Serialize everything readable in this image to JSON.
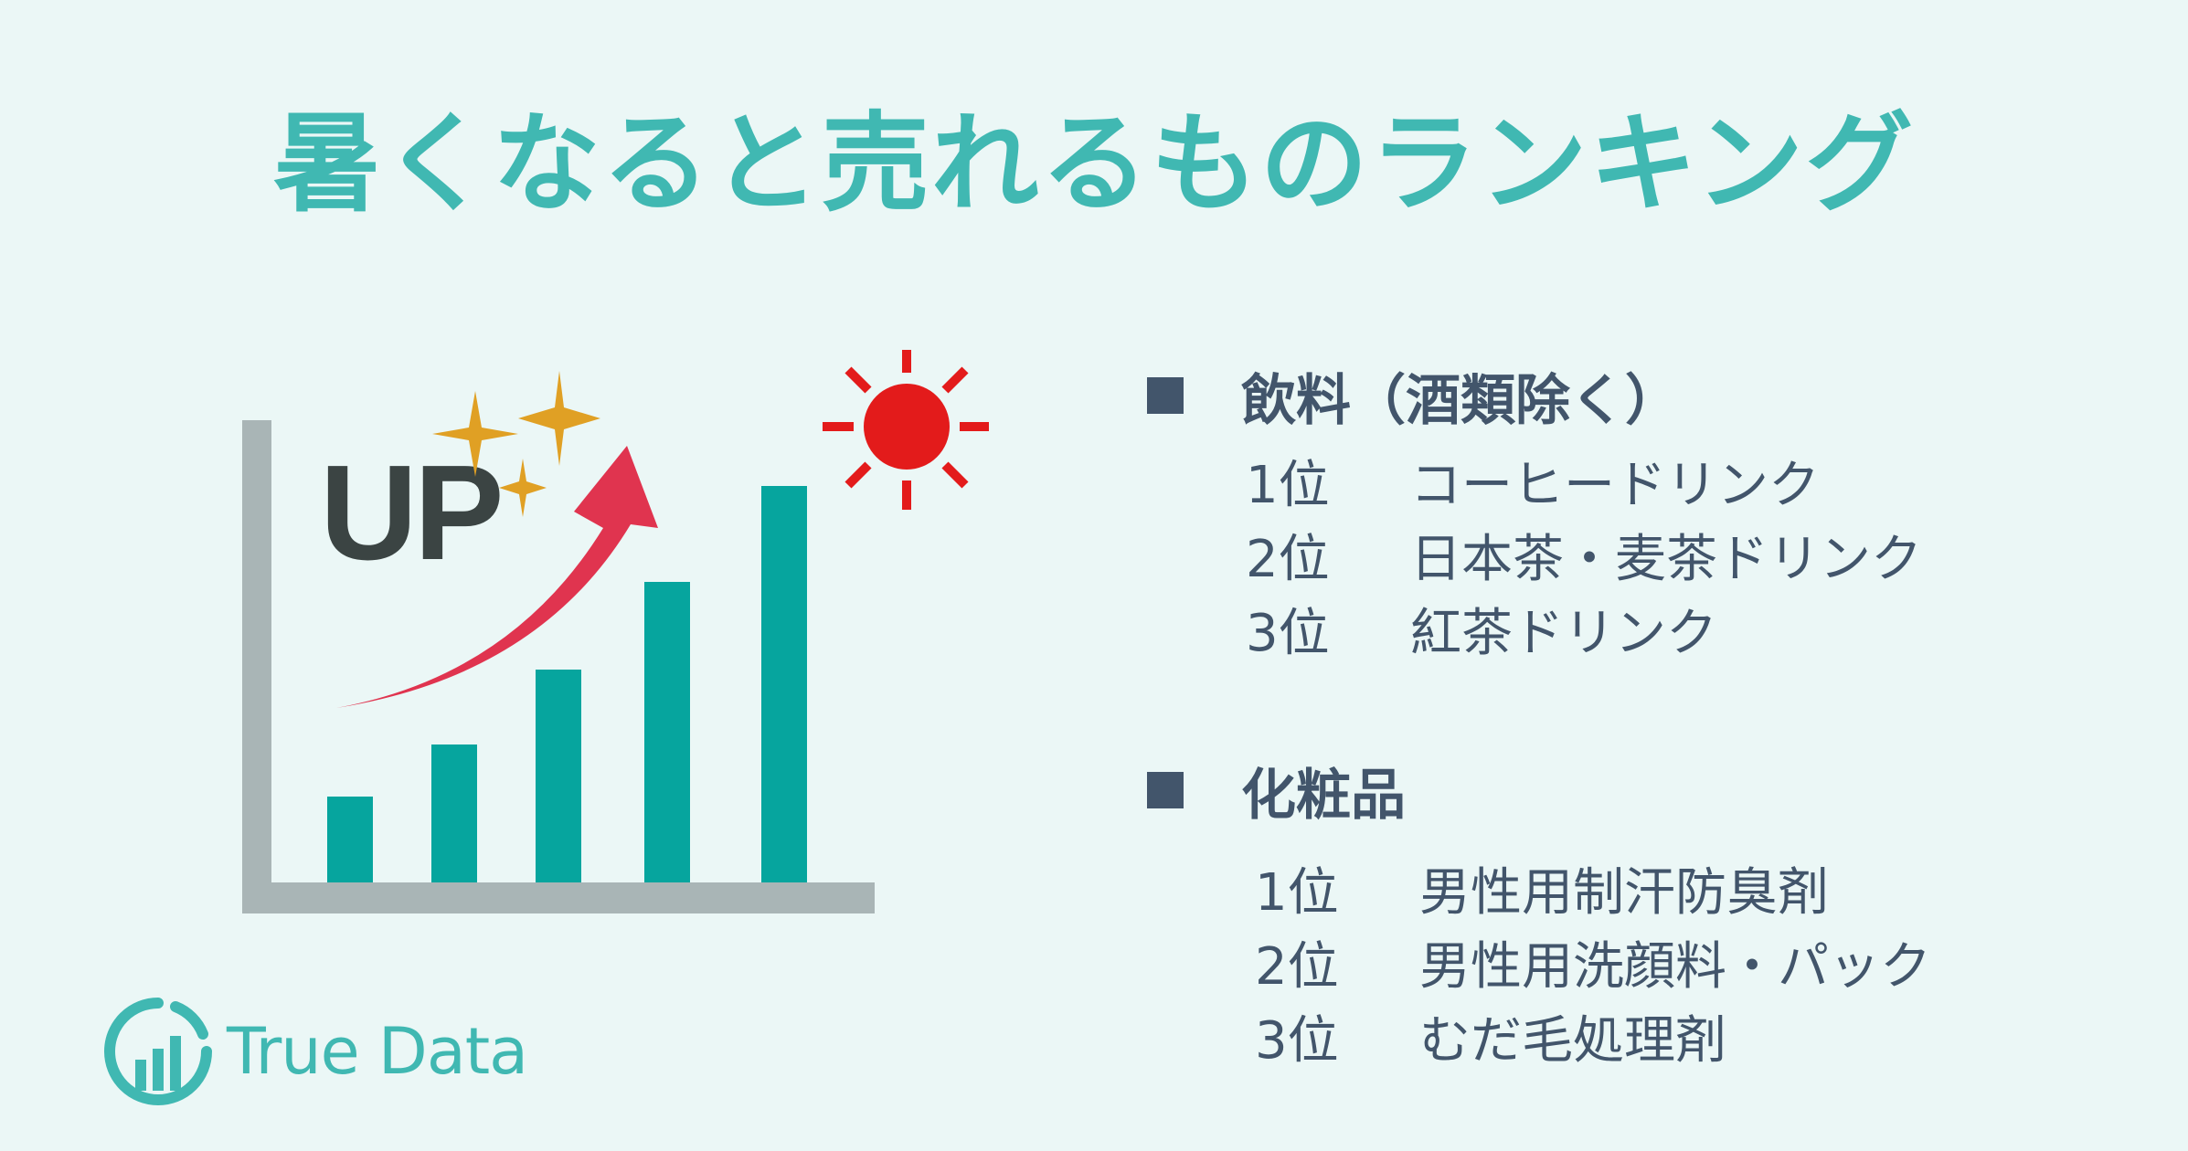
{
  "title": "暑くなると売れるものランキング",
  "illustration": {
    "up_label": "UP",
    "colors": {
      "bars": "#06a59e",
      "axis": "#a9b5b6",
      "arrow": "#e0344f",
      "sun": "#e31b1b",
      "sparkle": "#e0a024"
    }
  },
  "sections": [
    {
      "title": "飲料（酒類除く）",
      "items": [
        {
          "rank": "1位",
          "name": "コーヒードリンク"
        },
        {
          "rank": "2位",
          "name": "日本茶・麦茶ドリンク"
        },
        {
          "rank": "3位",
          "name": "紅茶ドリンク"
        }
      ]
    },
    {
      "title": "化粧品",
      "items": [
        {
          "rank": "1位",
          "name": "男性用制汗防臭剤"
        },
        {
          "rank": "2位",
          "name": "男性用洗顔料・パック"
        },
        {
          "rank": "3位",
          "name": "むだ毛処理剤"
        }
      ]
    }
  ],
  "logo": {
    "text": "True Data",
    "icon": "true-data-logo-icon"
  }
}
